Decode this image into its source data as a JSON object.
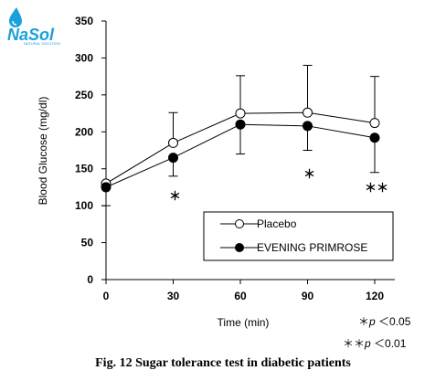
{
  "logo": {
    "brand_main": "NaSol",
    "brand_sub": "NATURAL SOLUTION",
    "colors": {
      "brand": "#1aa0dc"
    }
  },
  "caption": "Fig. 12 Sugar tolerance test in diabetic patients",
  "significance_notes": [
    {
      "stars": "＊",
      "p": "p",
      "text": "＜0.05"
    },
    {
      "stars": "＊＊",
      "p": "p",
      "text": "＜0.01"
    }
  ],
  "chart_data": {
    "type": "line",
    "xlabel": "Time (min)",
    "ylabel": "Blood Glucose (mg/dl)",
    "x": [
      0,
      30,
      60,
      90,
      120
    ],
    "xlim": [
      0,
      120
    ],
    "ylim": [
      0,
      350
    ],
    "xticks": [
      0,
      30,
      60,
      90,
      120
    ],
    "yticks": [
      0,
      50,
      100,
      150,
      200,
      250,
      300,
      350
    ],
    "grid": false,
    "legend_position": "bottom-right",
    "series": [
      {
        "name": "Placebo",
        "marker": "open-circle",
        "values": [
          130,
          185,
          225,
          226,
          212
        ],
        "error_upper": [
          130,
          226,
          276,
          290,
          275
        ],
        "error_lower": [
          130,
          185,
          225,
          226,
          212
        ]
      },
      {
        "name": "EVENING PRIMROSE",
        "marker": "filled-circle",
        "values": [
          125,
          165,
          210,
          208,
          192
        ],
        "error_upper": [
          125,
          165,
          210,
          208,
          192
        ],
        "error_lower": [
          100,
          140,
          170,
          175,
          145
        ]
      }
    ],
    "annotations": [
      {
        "x": 30,
        "text": "＊"
      },
      {
        "x": 90,
        "text": "＊"
      },
      {
        "x": 120,
        "text": "＊＊"
      }
    ]
  }
}
